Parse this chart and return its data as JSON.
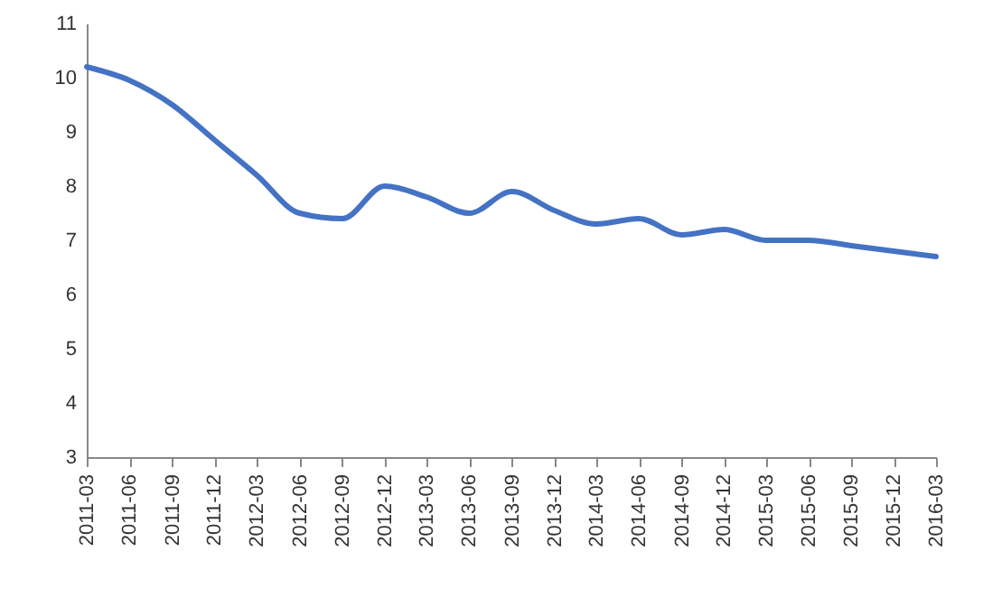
{
  "chart_data": {
    "type": "line",
    "x": [
      "2011-03",
      "2011-06",
      "2011-09",
      "2011-12",
      "2012-03",
      "2012-06",
      "2012-09",
      "2012-12",
      "2013-03",
      "2013-06",
      "2013-09",
      "2013-12",
      "2014-03",
      "2014-06",
      "2014-09",
      "2014-12",
      "2015-03",
      "2015-06",
      "2015-09",
      "2015-12",
      "2016-03"
    ],
    "series": [
      {
        "color": "#4472c4",
        "values": [
          10.2,
          9.95,
          9.5,
          8.85,
          8.2,
          7.5,
          7.4,
          8.0,
          7.8,
          7.5,
          7.9,
          7.55,
          7.3,
          7.4,
          7.1,
          7.2,
          7.0,
          7.0,
          6.9,
          6.8,
          6.7
        ]
      }
    ],
    "xlim": [
      "2011-03",
      "2016-03"
    ],
    "xticks": [
      "2011-03",
      "2011-06",
      "2011-09",
      "2011-12",
      "2012-03",
      "2012-06",
      "2012-09",
      "2012-12",
      "2013-03",
      "2013-06",
      "2013-09",
      "2013-12",
      "2014-03",
      "2014-06",
      "2014-09",
      "2014-12",
      "2015-03",
      "2015-06",
      "2015-09",
      "2015-12",
      "2016-03"
    ],
    "ylim": [
      3,
      11
    ],
    "yticks": [
      3,
      4,
      5,
      6,
      7,
      8,
      9,
      10,
      11
    ],
    "grid": false,
    "marker": "none",
    "line_style": "solid"
  }
}
